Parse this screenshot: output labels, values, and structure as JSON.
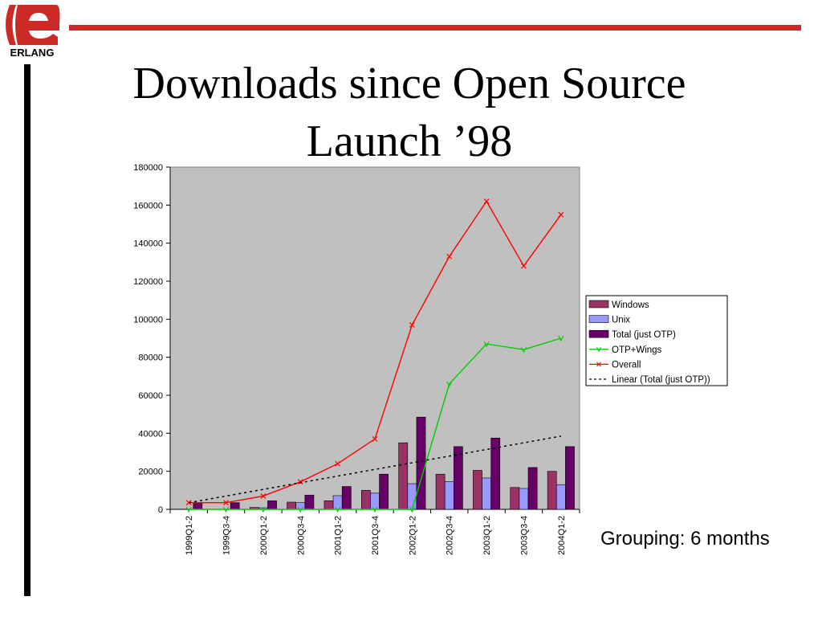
{
  "slide": {
    "title_line1": "Downloads since Open Source",
    "title_line2": "Launch ’98",
    "caption": "Grouping: 6 months",
    "logo_text": "ERLANG",
    "accent_color": "#cc2a27"
  },
  "chart_data": {
    "type": "bar",
    "title": "",
    "xlabel": "",
    "ylabel": "",
    "ylim": [
      0,
      180000
    ],
    "yticks": [
      0,
      20000,
      40000,
      60000,
      80000,
      100000,
      120000,
      140000,
      160000,
      180000
    ],
    "grid": false,
    "legend_position": "right",
    "categories": [
      "1999Q1-2",
      "1999Q3-4",
      "2000Q1-2",
      "2000Q3-4",
      "2001Q1-2",
      "2001Q3-4",
      "2002Q1-2",
      "2002Q3-4",
      "2003Q1-2",
      "2003Q3-4",
      "2004Q1-2"
    ],
    "series": [
      {
        "name": "Windows",
        "kind": "bar",
        "color": "#993366",
        "values": [
          0,
          0,
          1000,
          3800,
          4500,
          10000,
          35000,
          18500,
          20500,
          11500,
          20000
        ]
      },
      {
        "name": "Unix",
        "kind": "bar",
        "color": "#9999ff",
        "values": [
          0,
          0,
          800,
          3500,
          7200,
          8500,
          13500,
          14500,
          16500,
          11000,
          13000
        ]
      },
      {
        "name": "Total (just OTP)",
        "kind": "bar",
        "color": "#660066",
        "values": [
          3500,
          3500,
          4500,
          7500,
          12000,
          18500,
          48500,
          33000,
          37500,
          22000,
          33000
        ]
      },
      {
        "name": "OTP+Wings",
        "kind": "line",
        "color": "#00cc00",
        "values": [
          0,
          0,
          0,
          0,
          0,
          0,
          0,
          66000,
          87000,
          84000,
          90000
        ]
      },
      {
        "name": "Overall",
        "kind": "line",
        "color": "#ff0000",
        "values": [
          3500,
          3500,
          7000,
          14500,
          24000,
          37000,
          97000,
          133000,
          162000,
          128000,
          155000
        ]
      },
      {
        "name": "Linear (Total (just OTP))",
        "kind": "trend",
        "color": "#000000",
        "values": [
          3500,
          7000,
          10500,
          14000,
          17500,
          21000,
          24500,
          28000,
          31500,
          35000,
          38500
        ]
      }
    ]
  }
}
